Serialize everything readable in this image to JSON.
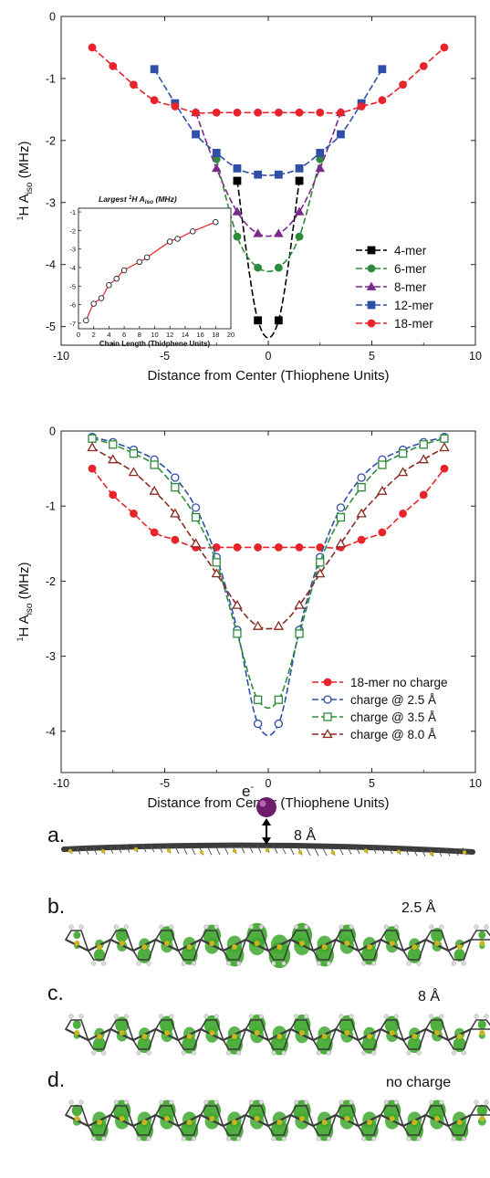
{
  "colors": {
    "4-mer": "#000000",
    "6-mer": "#2e8b3a",
    "8-mer": "#7a2a8c",
    "12-mer": "#2f4fa8",
    "18-mer": "#e8232a",
    "charge_2_5": "#2f4fa8",
    "charge_3_5": "#2e8b3a",
    "charge_8_0": "#8b2a22",
    "molecule_backbone": "#3c3c3c",
    "orbital_lobe": "#3fa82f",
    "sulfur": "#c9b51e",
    "electron_sphere": "#6e1d6a"
  },
  "chart_data": [
    {
      "type": "line",
      "ylabel_main": "H  A",
      "ylabel_sup": "1",
      "ylabel_sub": "iso",
      "ylabel_unit": " (MHz)",
      "xlabel": "Distance from Center (Thiophene Units)",
      "xlim": [
        -10,
        10
      ],
      "ylim": [
        -5.3,
        0
      ],
      "xticks": [
        "-10",
        "-5",
        "0",
        "5",
        "10"
      ],
      "yticks": [
        "0",
        "-1",
        "-2",
        "-3",
        "-4",
        "-5"
      ],
      "legend_position": "bottom-right",
      "series": [
        {
          "name": "4-mer",
          "marker": "square-filled",
          "x": [
            -1.5,
            -0.5,
            0.5,
            1.5
          ],
          "y": [
            -2.65,
            -4.9,
            -4.9,
            -2.65
          ]
        },
        {
          "name": "6-mer",
          "marker": "circle-filled",
          "x": [
            -2.5,
            -1.5,
            -0.5,
            0.5,
            1.5,
            2.5
          ],
          "y": [
            -2.3,
            -3.55,
            -4.05,
            -4.05,
            -3.55,
            -2.3
          ]
        },
        {
          "name": "8-mer",
          "marker": "triangle-filled",
          "x": [
            -3.5,
            -2.5,
            -1.5,
            -0.5,
            0.5,
            1.5,
            2.5,
            3.5
          ],
          "y": [
            -1.55,
            -2.45,
            -3.15,
            -3.5,
            -3.5,
            -3.15,
            -2.45,
            -1.55
          ]
        },
        {
          "name": "12-mer",
          "marker": "square-filled",
          "x": [
            -5.5,
            -4.5,
            -3.5,
            -2.5,
            -1.5,
            -0.5,
            0.5,
            1.5,
            2.5,
            3.5,
            4.5,
            5.5
          ],
          "y": [
            -0.85,
            -1.4,
            -1.9,
            -2.2,
            -2.45,
            -2.55,
            -2.55,
            -2.45,
            -2.2,
            -1.9,
            -1.4,
            -0.85
          ]
        },
        {
          "name": "18-mer",
          "marker": "circle-filled",
          "x": [
            -8.5,
            -7.5,
            -6.5,
            -5.5,
            -4.5,
            -3.5,
            -2.5,
            -1.5,
            -0.5,
            0.5,
            1.5,
            2.5,
            3.5,
            4.5,
            5.5,
            6.5,
            7.5,
            8.5
          ],
          "y": [
            -0.5,
            -0.8,
            -1.1,
            -1.35,
            -1.45,
            -1.55,
            -1.55,
            -1.55,
            -1.55,
            -1.55,
            -1.55,
            -1.55,
            -1.55,
            -1.45,
            -1.35,
            -1.1,
            -0.8,
            -0.5
          ]
        }
      ],
      "inset": {
        "title_main": "Largest ",
        "title_sup": "1",
        "title_mid": "H  A",
        "title_sub": "iso",
        "title_unit": " (MHz)",
        "xlabel": "Chain Length (Thiophene Units)",
        "xlim": [
          0,
          20
        ],
        "ylim": [
          -7.3,
          -0.8
        ],
        "xticks": [
          "0",
          "2",
          "4",
          "6",
          "8",
          "10",
          "12",
          "14",
          "16",
          "18",
          "20"
        ],
        "yticks": [
          "-1",
          "-2",
          "-3",
          "-4",
          "-5",
          "-6",
          "-7"
        ],
        "x": [
          1,
          2,
          3,
          4,
          5,
          6,
          8,
          9,
          12,
          13,
          15,
          18
        ],
        "y": [
          -6.85,
          -5.95,
          -5.65,
          -4.95,
          -4.6,
          -4.15,
          -3.7,
          -3.45,
          -2.6,
          -2.45,
          -2.05,
          -1.55
        ]
      }
    },
    {
      "type": "line",
      "ylabel_main": "H  A",
      "ylabel_sup": "1",
      "ylabel_sub": "iso",
      "ylabel_unit": " (MHz)",
      "xlabel": "Distance from Center (Thiophene Units)",
      "xlim": [
        -10,
        10
      ],
      "ylim": [
        -4.55,
        0
      ],
      "xticks": [
        "-10",
        "-5",
        "0",
        "5",
        "10"
      ],
      "yticks": [
        "0",
        "-1",
        "-2",
        "-3",
        "-4"
      ],
      "legend_position": "bottom-right",
      "series": [
        {
          "name": "18-mer no charge",
          "marker": "circle-filled",
          "x": [
            -8.5,
            -7.5,
            -6.5,
            -5.5,
            -4.5,
            -3.5,
            -2.5,
            -1.5,
            -0.5,
            0.5,
            1.5,
            2.5,
            3.5,
            4.5,
            5.5,
            6.5,
            7.5,
            8.5
          ],
          "y": [
            -0.5,
            -0.85,
            -1.1,
            -1.35,
            -1.45,
            -1.55,
            -1.55,
            -1.55,
            -1.55,
            -1.55,
            -1.55,
            -1.55,
            -1.55,
            -1.45,
            -1.35,
            -1.1,
            -0.85,
            -0.5
          ]
        },
        {
          "name": "charge @ 2.5  Å",
          "marker": "circle-open",
          "x": [
            -8.5,
            -7.5,
            -6.5,
            -5.5,
            -4.5,
            -3.5,
            -2.5,
            -1.5,
            -0.5,
            0.5,
            1.5,
            2.5,
            3.5,
            4.5,
            5.5,
            6.5,
            7.5,
            8.5
          ],
          "y": [
            -0.08,
            -0.15,
            -0.25,
            -0.38,
            -0.62,
            -1.02,
            -1.68,
            -2.65,
            -3.9,
            -3.9,
            -2.65,
            -1.68,
            -1.02,
            -0.62,
            -0.38,
            -0.25,
            -0.15,
            -0.08
          ]
        },
        {
          "name": "charge @ 3.5  Å",
          "marker": "square-open",
          "x": [
            -8.5,
            -7.5,
            -6.5,
            -5.5,
            -4.5,
            -3.5,
            -2.5,
            -1.5,
            -0.5,
            0.5,
            1.5,
            2.5,
            3.5,
            4.5,
            5.5,
            6.5,
            7.5,
            8.5
          ],
          "y": [
            -0.1,
            -0.18,
            -0.3,
            -0.45,
            -0.75,
            -1.15,
            -1.75,
            -2.7,
            -3.58,
            -3.58,
            -2.7,
            -1.75,
            -1.15,
            -0.75,
            -0.45,
            -0.3,
            -0.18,
            -0.1
          ]
        },
        {
          "name": "charge @ 8.0  Å",
          "marker": "triangle-open",
          "x": [
            -8.5,
            -7.5,
            -6.5,
            -5.5,
            -4.5,
            -3.5,
            -2.5,
            -1.5,
            -0.5,
            0.5,
            1.5,
            2.5,
            3.5,
            4.5,
            5.5,
            6.5,
            7.5,
            8.5
          ],
          "y": [
            -0.22,
            -0.38,
            -0.55,
            -0.8,
            -1.1,
            -1.5,
            -1.9,
            -2.32,
            -2.6,
            -2.6,
            -2.32,
            -1.9,
            -1.5,
            -1.1,
            -0.8,
            -0.55,
            -0.38,
            -0.22
          ]
        }
      ]
    }
  ],
  "structures": {
    "electron_label": "e",
    "electron_sup": "-",
    "panels": [
      {
        "letter": "a.",
        "label": "8 Å"
      },
      {
        "letter": "b.",
        "label": "2.5 Å"
      },
      {
        "letter": "c.",
        "label": "8 Å"
      },
      {
        "letter": "d.",
        "label": "no charge"
      }
    ]
  }
}
